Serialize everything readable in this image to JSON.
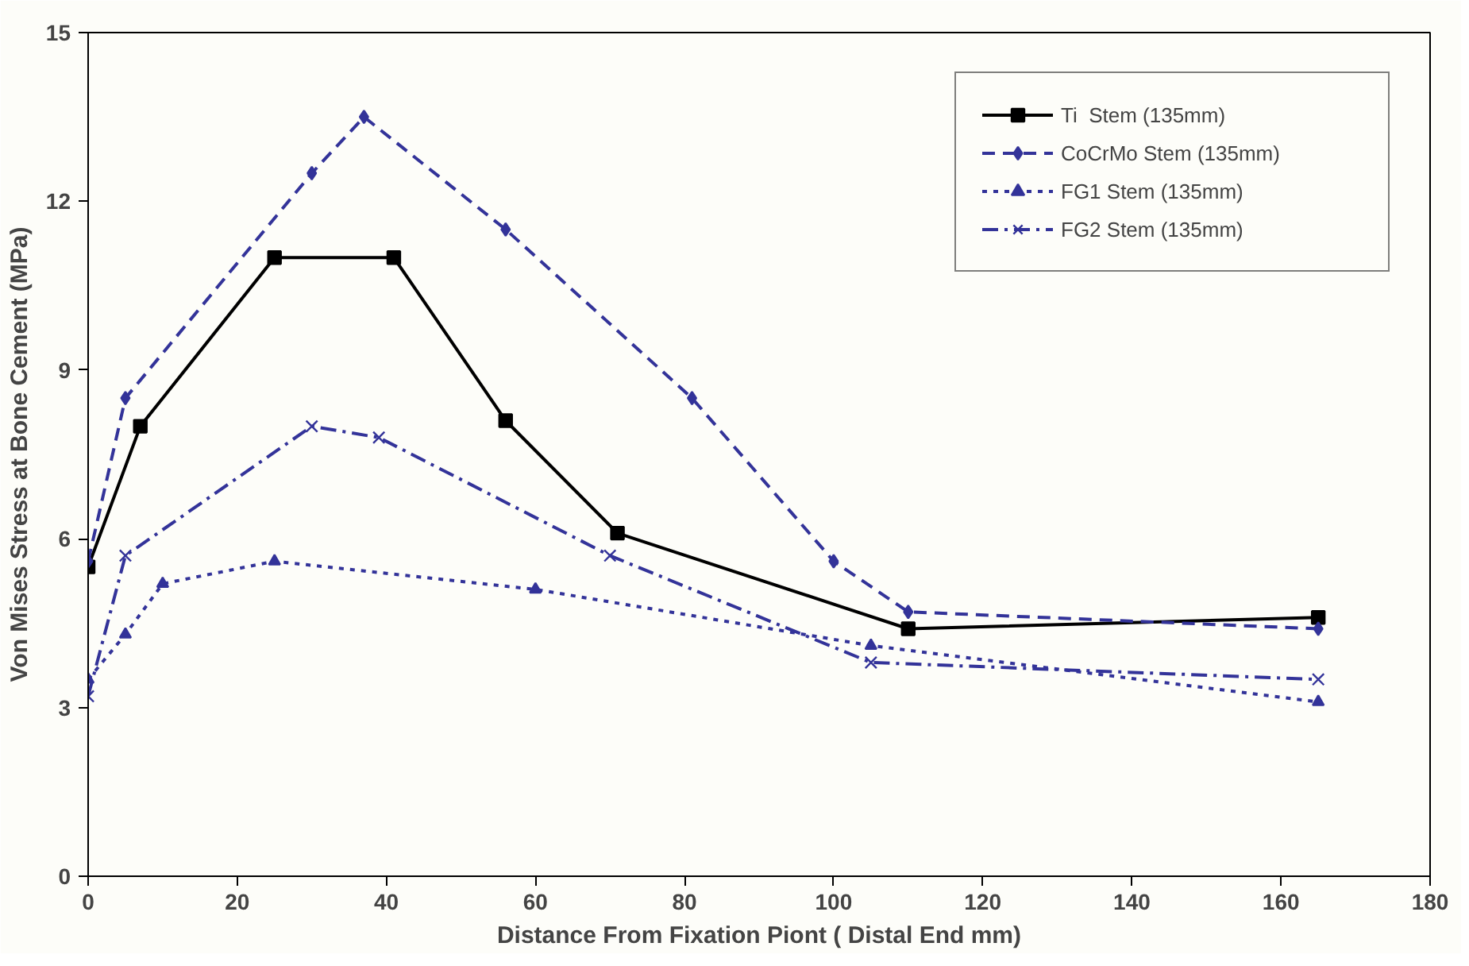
{
  "chart_data": {
    "type": "line",
    "xlabel": "Distance From Fixation Piont ( Distal End mm)",
    "ylabel": "Von Mises Stress at Bone Cement (MPa)",
    "xlim": [
      0,
      180
    ],
    "xticks": [
      0,
      20,
      40,
      60,
      80,
      100,
      120,
      140,
      160,
      180
    ],
    "ylim": [
      0,
      15
    ],
    "yticks": [
      0,
      3,
      6,
      9,
      12,
      15
    ],
    "grid": false,
    "legend": "top right",
    "series": [
      {
        "name": "Ti  Stem (135mm)",
        "color": "#000000",
        "marker": "square",
        "line_style": "solid",
        "x": [
          0,
          7,
          25,
          41,
          56,
          71,
          110,
          165
        ],
        "values": [
          5.5,
          8.0,
          11.0,
          11.0,
          8.1,
          6.1,
          4.4,
          4.6
        ]
      },
      {
        "name": "CoCrMo Stem (135mm)",
        "color": "#333399",
        "marker": "diamond",
        "line_style": "dashed",
        "x": [
          0,
          5,
          30,
          37,
          56,
          81,
          100,
          110,
          165
        ],
        "values": [
          5.6,
          8.5,
          12.5,
          13.5,
          11.5,
          8.5,
          5.6,
          4.7,
          4.4
        ]
      },
      {
        "name": "FG1 Stem (135mm)",
        "color": "#333399",
        "marker": "triangle",
        "line_style": "dotted",
        "x": [
          0,
          5,
          10,
          25,
          60,
          105,
          165
        ],
        "values": [
          3.5,
          4.3,
          5.2,
          5.6,
          5.1,
          4.1,
          3.1
        ]
      },
      {
        "name": "FG2 Stem (135mm)",
        "color": "#333399",
        "marker": "x",
        "line_style": "dashdot",
        "x": [
          0,
          5,
          30,
          39,
          70,
          105,
          165
        ],
        "values": [
          3.2,
          5.7,
          8.0,
          7.8,
          5.7,
          3.8,
          3.5
        ]
      }
    ]
  }
}
